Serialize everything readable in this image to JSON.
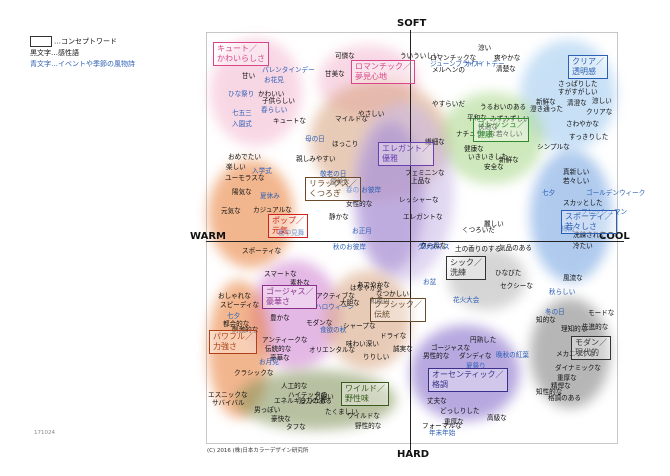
{
  "legend": {
    "box_label": "…コンセプトワード",
    "black_label": "黒文字…感性語",
    "blue_label": "青文字…イベントや季節の風物詩"
  },
  "axes": {
    "top": "SOFT",
    "bottom": "HARD",
    "left": "WARM",
    "right": "COOL"
  },
  "footer": "(C) 2016 (株)日本カラーデザイン研究所",
  "doc_id": "171024",
  "colors": {
    "pink": "#f3b8cf",
    "orange": "#e87b33",
    "tan": "#d7a27d",
    "purple": "#a58bd0",
    "lavender": "#c7b6e6",
    "green": "#a7d687",
    "lightblue": "#9cc8ee",
    "blue": "#6ea0e0",
    "magenta": "#cf7fd0",
    "olive": "#7e8f55",
    "darkgray": "#7b7b7b",
    "gray": "#b3b3b3",
    "violet": "#7d63c6"
  },
  "concepts": [
    {
      "id": "cute",
      "text": "キュート／\nかわいらしさ",
      "color": "#d9468a"
    },
    {
      "id": "romantic",
      "text": "ロマンチック／\n夢見心地",
      "color": "#d9468a"
    },
    {
      "id": "clear",
      "text": "クリア／\n透明感",
      "color": "#2d5fb5"
    },
    {
      "id": "fresh",
      "text": "フレッシュ／\n健康",
      "color": "#2f8a2f"
    },
    {
      "id": "elegant",
      "text": "エレガント／\n優雅",
      "color": "#6a3fb0"
    },
    {
      "id": "relax",
      "text": "リラックス／\nくつろぎ",
      "color": "#6b4a2a"
    },
    {
      "id": "pop",
      "text": "ポップ／\n元気",
      "color": "#d12020"
    },
    {
      "id": "sporty",
      "text": "スポーティ／\n若々しさ",
      "color": "#2d5fb5"
    },
    {
      "id": "chic",
      "text": "シック／\n洗練",
      "color": "#333333"
    },
    {
      "id": "gorgeous",
      "text": "ゴージャス／\n豪華さ",
      "color": "#8a2f8a"
    },
    {
      "id": "classic",
      "text": "クラシック／\n伝統",
      "color": "#6b4a2a"
    },
    {
      "id": "powerful",
      "text": "パワフル／\n力強さ",
      "color": "#b0401a"
    },
    {
      "id": "modern",
      "text": "モダン／\n現代的",
      "color": "#333333"
    },
    {
      "id": "authentic",
      "text": "オーセンティック／\n格調",
      "color": "#3a2f8a"
    },
    {
      "id": "wild",
      "text": "ワイルド／\n野性味",
      "color": "#3a5a1a"
    }
  ],
  "keywords": [
    {
      "t": "甘い"
    },
    {
      "t": "パレンタインデー",
      "b": true
    },
    {
      "t": "お花見",
      "b": true
    },
    {
      "t": "可憐な"
    },
    {
      "t": "甘美な"
    },
    {
      "t": "ういういしい"
    },
    {
      "t": "ロマンチックな"
    },
    {
      "t": "ジューンブライド",
      "b": true
    },
    {
      "t": "ホワイトデー",
      "b": true
    },
    {
      "t": "メルヘンの"
    },
    {
      "t": "涼い"
    },
    {
      "t": "爽やかな"
    },
    {
      "t": "清楚な"
    },
    {
      "t": "さっぱりした"
    },
    {
      "t": "すがすがしい"
    },
    {
      "t": "新鮮な"
    },
    {
      "t": "清澄な"
    },
    {
      "t": "涼しい"
    },
    {
      "t": "澄き通った"
    },
    {
      "t": "クリアな"
    },
    {
      "t": "さわやかな"
    },
    {
      "t": "すっきりした"
    },
    {
      "t": "ひな祭り",
      "b": true
    },
    {
      "t": "かわいい"
    },
    {
      "t": "子供らしい"
    },
    {
      "t": "春らしい",
      "b": true
    },
    {
      "t": "七五三",
      "b": true
    },
    {
      "t": "キュートな"
    },
    {
      "t": "入園式",
      "b": true
    },
    {
      "t": "マイルドな"
    },
    {
      "t": "やさしい"
    },
    {
      "t": "やすらいだ"
    },
    {
      "t": "うるおいのある"
    },
    {
      "t": "平和な"
    },
    {
      "t": "みずみずしい"
    },
    {
      "t": "快適な"
    },
    {
      "t": "ナチュラルな"
    },
    {
      "t": "若々しい"
    },
    {
      "t": "健康な"
    },
    {
      "t": "いきいきした"
    },
    {
      "t": "新鮮な"
    },
    {
      "t": "安全な"
    },
    {
      "t": "シンプルな"
    },
    {
      "t": "母の日",
      "b": true
    },
    {
      "t": "ほっこり"
    },
    {
      "t": "繊細な"
    },
    {
      "t": "おめでたい"
    },
    {
      "t": "親しみやすい"
    },
    {
      "t": "楽しい"
    },
    {
      "t": "入学式",
      "b": true
    },
    {
      "t": "敬老の日",
      "b": true
    },
    {
      "t": "フェミニンな"
    },
    {
      "t": "上品な"
    },
    {
      "t": "ユーモラスな"
    },
    {
      "t": "優美な"
    },
    {
      "t": "陽気な"
    },
    {
      "t": "夏休み",
      "b": true
    },
    {
      "t": "春の お彼岸",
      "b": true
    },
    {
      "t": "真新しい"
    },
    {
      "t": "若々しい"
    },
    {
      "t": "七夕",
      "b": true
    },
    {
      "t": "ゴールデンウィーク",
      "b": true
    },
    {
      "t": "スカッとした"
    },
    {
      "t": "フレッシュマン",
      "b": true
    },
    {
      "t": "カジュアルな"
    },
    {
      "t": "女性的な"
    },
    {
      "t": "レッシャーな"
    },
    {
      "t": "エレガントな"
    },
    {
      "t": "元気な"
    },
    {
      "t": "静かな"
    },
    {
      "t": "お正月",
      "b": true
    },
    {
      "t": "くつろいだ"
    },
    {
      "t": "麗しい"
    },
    {
      "t": "梅雨",
      "b": true
    },
    {
      "t": "洗練された"
    },
    {
      "t": "冷たい"
    },
    {
      "t": "スポーティな"
    },
    {
      "t": "暑中見舞",
      "b": true
    },
    {
      "t": "クリスマス",
      "b": true
    },
    {
      "t": "土の香りのする"
    },
    {
      "t": "気品のある"
    },
    {
      "t": "秋のお彼岸",
      "b": true
    },
    {
      "t": "スマートな"
    },
    {
      "t": "素朴な"
    },
    {
      "t": "はなやかな"
    },
    {
      "t": "あでやかな"
    },
    {
      "t": "なつかしい"
    },
    {
      "t": "和風の"
    },
    {
      "t": "お盆",
      "b": true
    },
    {
      "t": "ひなびた"
    },
    {
      "t": "風流な"
    },
    {
      "t": "おしゃれな"
    },
    {
      "t": "スピーディな"
    },
    {
      "t": "アクティブな"
    },
    {
      "t": "ハロウィーン",
      "b": true
    },
    {
      "t": "七夕",
      "b": true
    },
    {
      "t": "豊かな"
    },
    {
      "t": "大胆な"
    },
    {
      "t": "セクシーな"
    },
    {
      "t": "秋らしい",
      "b": true
    },
    {
      "t": "都会的な"
    },
    {
      "t": "モダンな"
    },
    {
      "t": "刺激的な"
    },
    {
      "t": "食欲の秋",
      "b": true
    },
    {
      "t": "花火大会",
      "b": true
    },
    {
      "t": "冬の日",
      "b": true
    },
    {
      "t": "知的な"
    },
    {
      "t": "モードな"
    },
    {
      "t": "理知的な"
    },
    {
      "t": "先進的な"
    },
    {
      "t": "シャープな"
    },
    {
      "t": "ドライな"
    },
    {
      "t": "味わい深い"
    },
    {
      "t": "アンティークな"
    },
    {
      "t": "伝統的な"
    },
    {
      "t": "オリエンタルな"
    },
    {
      "t": "豪華な"
    },
    {
      "t": "円熟した"
    },
    {
      "t": "ゴージャスな"
    },
    {
      "t": "男性的な"
    },
    {
      "t": "ダンディな"
    },
    {
      "t": "晩秋の紅葉",
      "b": true
    },
    {
      "t": "誠実な"
    },
    {
      "t": "りりしい"
    },
    {
      "t": "お月見",
      "b": true
    },
    {
      "t": "クラシックな"
    },
    {
      "t": "夏祭り",
      "b": true
    },
    {
      "t": "ダイナミックな"
    },
    {
      "t": "重厚な"
    },
    {
      "t": "精悍な"
    },
    {
      "t": "人工的な"
    },
    {
      "t": "ハイテックの"
    },
    {
      "t": "エスニックな"
    },
    {
      "t": "サバイバル"
    },
    {
      "t": "エネルギッシュな"
    },
    {
      "t": "迫力のある"
    },
    {
      "t": "力強い"
    },
    {
      "t": "男っぽい"
    },
    {
      "t": "豪快な"
    },
    {
      "t": "タフな"
    },
    {
      "t": "たくましい"
    },
    {
      "t": "ワイルドな"
    },
    {
      "t": "野性的な"
    },
    {
      "t": "丈夫な"
    },
    {
      "t": "どっしりした"
    },
    {
      "t": "高級な"
    },
    {
      "t": "格調のある"
    },
    {
      "t": "フォーマルな"
    },
    {
      "t": "メカニックな"
    },
    {
      "t": "重厚な"
    },
    {
      "t": "年末年始",
      "b": true
    },
    {
      "t": "知性的な"
    },
    {
      "t": "恋の月",
      "b": true
    },
    {
      "t": "クールな"
    }
  ]
}
